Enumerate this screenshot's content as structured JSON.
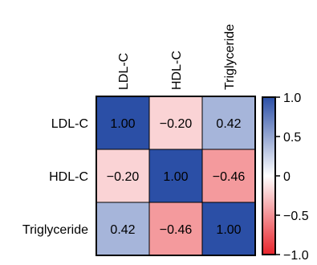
{
  "chart_data": {
    "type": "heatmap",
    "title": "",
    "xlabel": "",
    "ylabel": "",
    "rows": [
      "LDL-C",
      "HDL-C",
      "Triglyceride"
    ],
    "columns": [
      "LDL-C",
      "HDL-C",
      "Triglyceride"
    ],
    "values": [
      [
        1.0,
        -0.2,
        0.42
      ],
      [
        -0.2,
        1.0,
        -0.46
      ],
      [
        0.42,
        -0.46,
        1.0
      ]
    ],
    "cell_labels": [
      [
        "1.00",
        "−0.20",
        "0.42"
      ],
      [
        "−0.20",
        "1.00",
        "−0.46"
      ],
      [
        "0.42",
        "−0.46",
        "1.00"
      ]
    ],
    "colorbar": {
      "range": [
        -1.0,
        1.0
      ],
      "ticks": [
        1.0,
        0.5,
        0,
        -0.5,
        -1.0
      ],
      "tick_labels": [
        "1.0",
        "0.5",
        "0",
        "−0.5",
        "−1.0"
      ],
      "colors": {
        "low": "#e8242b",
        "mid": "#ffffff",
        "high": "#2b4fa6"
      }
    },
    "grid": false,
    "legend": "right"
  }
}
